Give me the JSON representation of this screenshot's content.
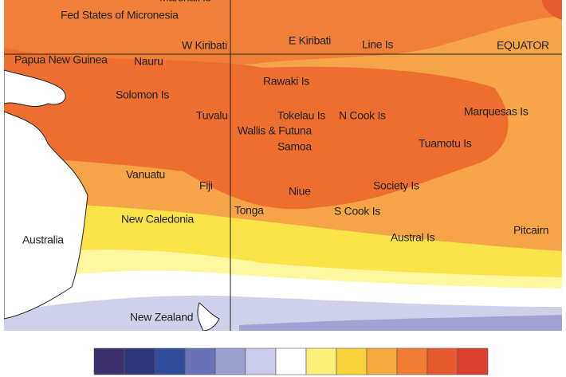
{
  "map": {
    "labels": [
      "Marshall Is",
      "Fed States of Micronesia",
      "W Kiribati",
      "E Kiribati",
      "Line Is",
      "EQUATOR",
      "Papua New Guinea",
      "Nauru",
      "Rawaki Is",
      "Solomon Is",
      "Tuvalu",
      "Tokelau Is",
      "N Cook Is",
      "Marquesas Is",
      "Wallis & Futuna",
      "Samoa",
      "Tuamotu Is",
      "Vanuatu",
      "Fiji",
      "Niue",
      "Society Is",
      "Tonga",
      "S Cook Is",
      "New Caledonia",
      "Pitcairn",
      "Australia",
      "Austral Is",
      "New Zealand"
    ]
  },
  "colorbar": {
    "colors": [
      "#3b2f6e",
      "#2e3578",
      "#2f4c9a",
      "#6a72b8",
      "#9a9fd0",
      "#c9cbe8",
      "#ffffff",
      "#fbf17a",
      "#f9d23a",
      "#f6a93d",
      "#f07d33",
      "#e65a2e",
      "#d94030"
    ]
  }
}
